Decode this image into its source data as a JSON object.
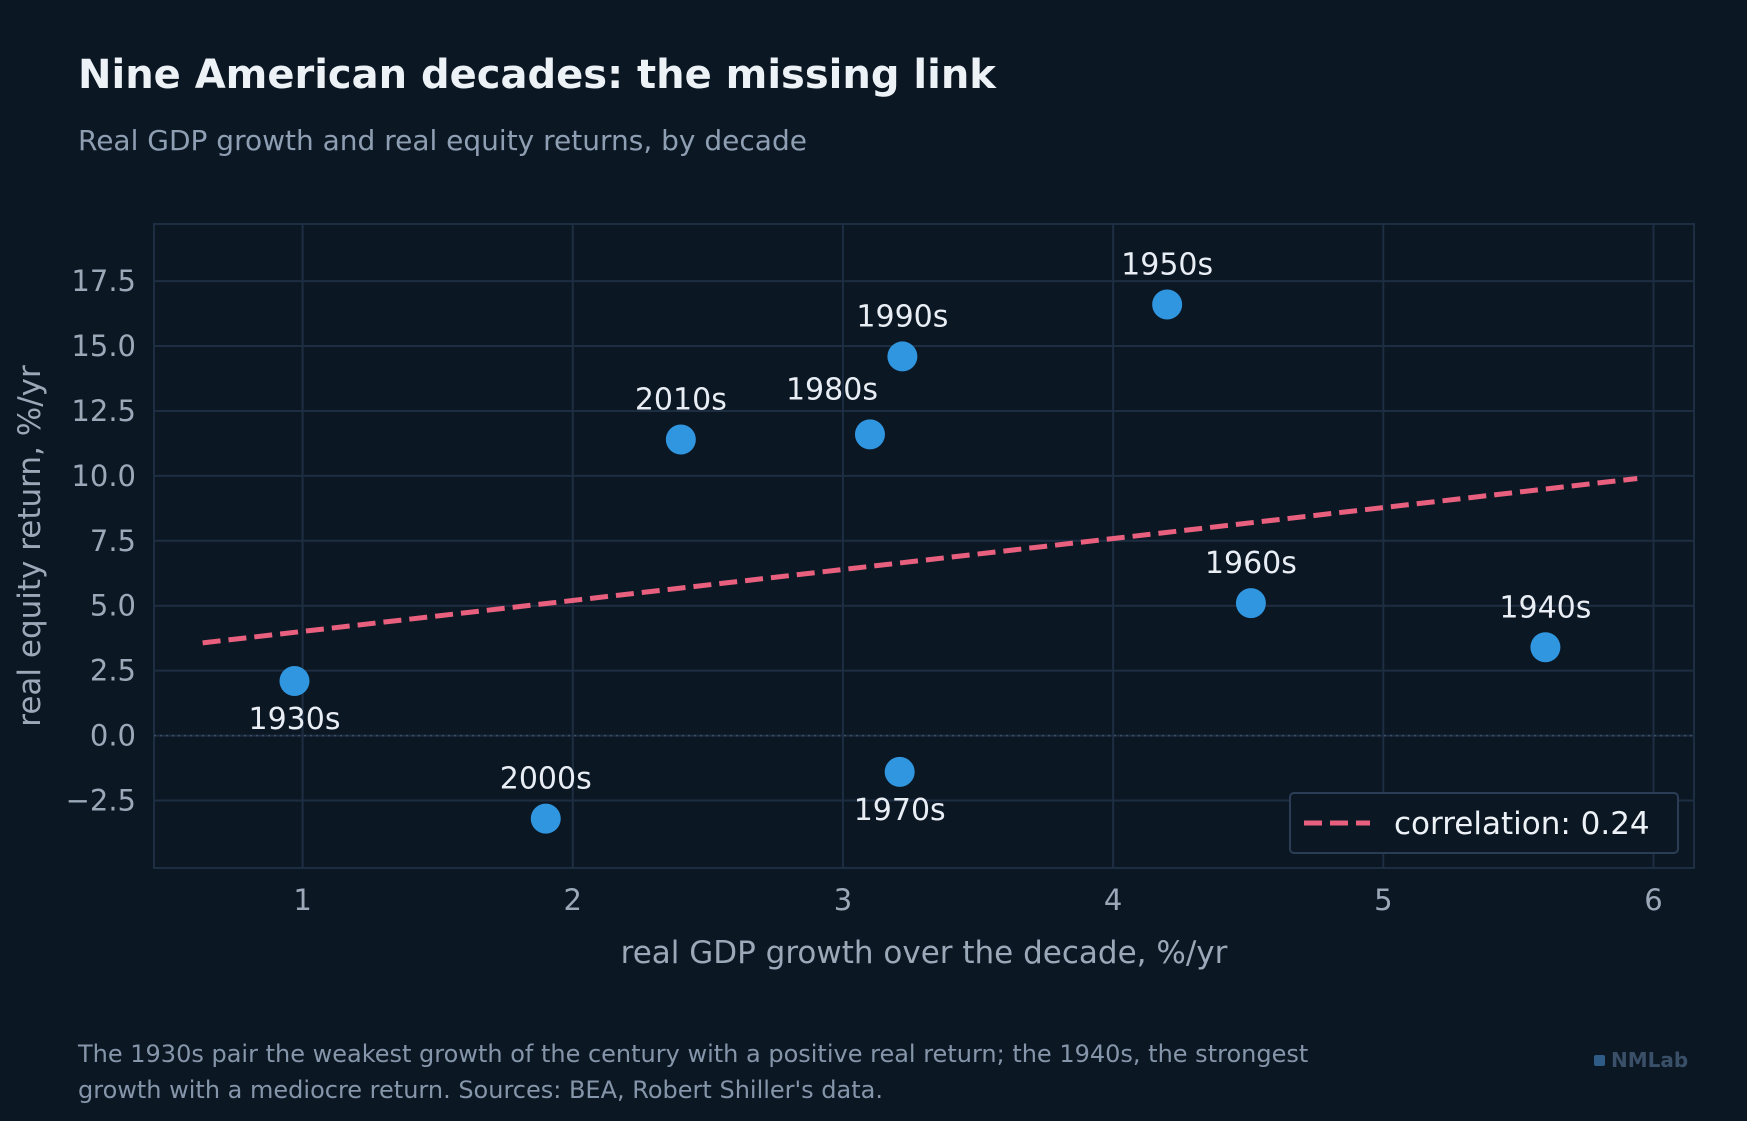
{
  "header": {
    "title": "Nine American decades: the missing link",
    "subtitle": "Real GDP growth and real equity returns, by decade"
  },
  "chart_data": {
    "type": "scatter",
    "xlabel": "real GDP growth over the decade, %/yr",
    "ylabel": "real equity return, %/yr",
    "xlim": [
      0.45,
      6.15
    ],
    "ylim": [
      -5.1,
      19.7
    ],
    "xticks": [
      "1",
      "2",
      "3",
      "4",
      "5",
      "6"
    ],
    "yticks": [
      "−2.5",
      "0.0",
      "2.5",
      "5.0",
      "7.5",
      "10.0",
      "12.5",
      "15.0",
      "17.5"
    ],
    "grid": true,
    "zero_line": true,
    "legend_position": "bottom-right",
    "points": [
      {
        "label": "1930s",
        "x": 0.97,
        "y": 2.1,
        "label_pos": "below"
      },
      {
        "label": "1940s",
        "x": 5.6,
        "y": 3.4,
        "label_pos": "above"
      },
      {
        "label": "1950s",
        "x": 4.2,
        "y": 16.6,
        "label_pos": "above"
      },
      {
        "label": "1960s",
        "x": 4.51,
        "y": 5.1,
        "label_pos": "above"
      },
      {
        "label": "1970s",
        "x": 3.21,
        "y": -1.4,
        "label_pos": "below"
      },
      {
        "label": "1980s",
        "x": 3.1,
        "y": 11.6,
        "label_pos": "above-left"
      },
      {
        "label": "1990s",
        "x": 3.22,
        "y": 14.6,
        "label_pos": "above"
      },
      {
        "label": "2000s",
        "x": 1.9,
        "y": -3.2,
        "label_pos": "above"
      },
      {
        "label": "2010s",
        "x": 2.4,
        "y": 11.4,
        "label_pos": "above"
      }
    ],
    "trend_line": {
      "label": "correlation: 0.24",
      "x": [
        0.63,
        5.94
      ],
      "y": [
        3.57,
        9.9
      ]
    },
    "colors": {
      "point": "#3096e0",
      "trend": "#e8607e",
      "grid": "#1e2e42",
      "axis_text": "#9aa8b8",
      "label_text": "#e9eef5"
    }
  },
  "footnote": "The 1930s pair the weakest growth of the century with a positive real return; the 1940s, the strongest growth with a mediocre return. Sources: BEA, Robert Shiller's data.",
  "brand": {
    "name": "NMLab"
  }
}
